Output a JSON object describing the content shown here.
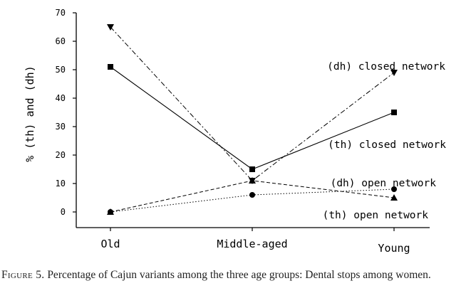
{
  "chart_data": {
    "type": "line",
    "xlabel": "",
    "ylabel": "% (th) and (dh)",
    "categories": [
      "Old",
      "Middle-aged",
      "Young"
    ],
    "ylim": [
      0,
      70
    ],
    "yticks": [
      0,
      10,
      20,
      30,
      40,
      50,
      60,
      70
    ],
    "grid": false,
    "legend": "inline labels at right of lines",
    "series": [
      {
        "name": "(dh) closed network",
        "values": [
          65,
          11,
          49
        ],
        "marker": "triangle-down",
        "line": "dash-dot"
      },
      {
        "name": "(th) closed network",
        "values": [
          51,
          15,
          35
        ],
        "marker": "square",
        "line": "solid"
      },
      {
        "name": "(dh) open network",
        "values": [
          0,
          11,
          5
        ],
        "marker": "triangle-up",
        "line": "dashed"
      },
      {
        "name": "(th) open network",
        "values": [
          0,
          6,
          8
        ],
        "marker": "circle",
        "line": "dotted"
      }
    ]
  },
  "caption": {
    "figure_label": "Figure 5.",
    "text": "Percentage of Cajun variants among the three age groups: Dental stops among women."
  }
}
